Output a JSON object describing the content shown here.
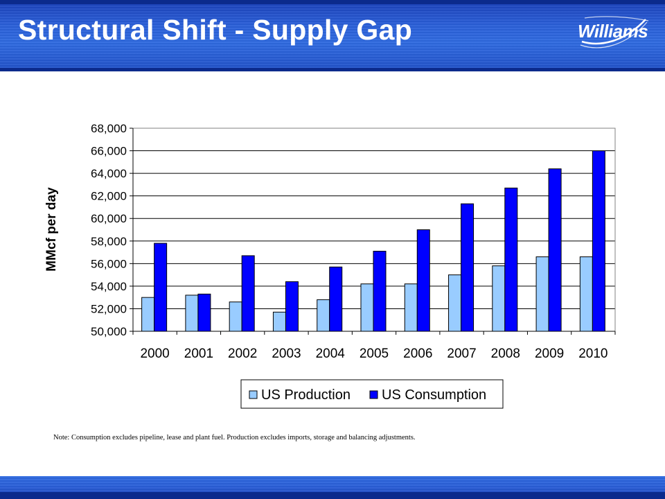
{
  "header": {
    "title": "Structural Shift - Supply Gap",
    "logo_text": "Williams"
  },
  "note": "Note: Consumption excludes pipeline, lease and plant fuel.  Production excludes imports, storage and balancing adjustments.",
  "colors": {
    "header_blue": "#2a5fd8",
    "production": "#99ccff",
    "consumption": "#0000ff"
  },
  "chart_data": {
    "type": "bar",
    "title": "",
    "xlabel": "",
    "ylabel": "MMcf per day",
    "ylim": [
      50000,
      68000
    ],
    "yticks": [
      "50,000",
      "52,000",
      "54,000",
      "56,000",
      "58,000",
      "60,000",
      "62,000",
      "64,000",
      "66,000",
      "68,000"
    ],
    "grid": true,
    "legend_position": "bottom",
    "categories": [
      "2000",
      "2001",
      "2002",
      "2003",
      "2004",
      "2005",
      "2006",
      "2007",
      "2008",
      "2009",
      "2010"
    ],
    "series": [
      {
        "name": "US Production",
        "color": "#99ccff",
        "values": [
          53000,
          53200,
          52600,
          51700,
          52800,
          54200,
          54200,
          55000,
          55800,
          56600,
          56600
        ]
      },
      {
        "name": "US Consumption",
        "color": "#0000ff",
        "values": [
          57800,
          53300,
          56700,
          54400,
          55700,
          57100,
          59000,
          61300,
          62700,
          64400,
          66000
        ]
      }
    ]
  }
}
